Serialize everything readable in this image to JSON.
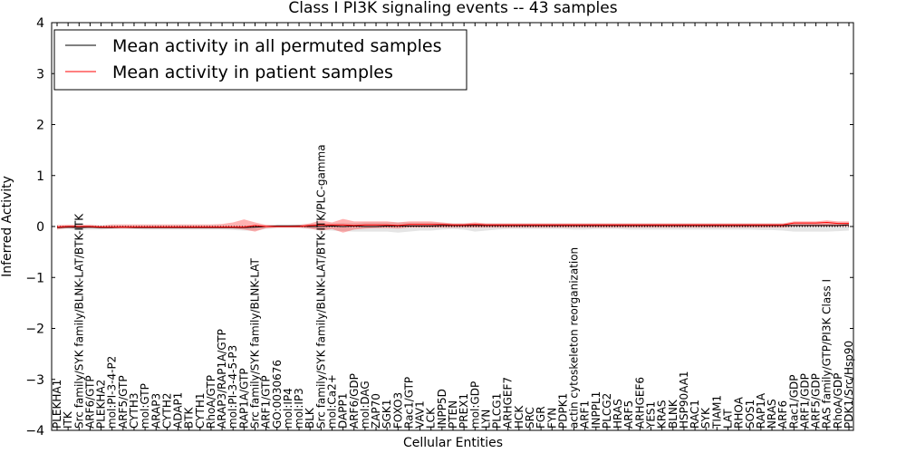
{
  "chart_data": {
    "type": "line",
    "title": "Class I PI3K signaling events -- 43 samples",
    "xlabel": "Cellular Entities",
    "ylabel": "Inferred Activity",
    "ylim": [
      -4,
      4
    ],
    "yticks": [
      -4,
      -3,
      -2,
      -1,
      0,
      1,
      2,
      3,
      4
    ],
    "grid": false,
    "legend_position": "top-left",
    "categories": [
      "PLEKHA1",
      "ITK",
      "Src family/SYK family/BLNK-LAT/BTK-ITK",
      "ARF6/GTP",
      "PLEKHA2",
      "mol:PI-3-4-P2",
      "ARF5/GTP",
      "CYTH3",
      "mol:GTP",
      "ARAP3",
      "CYTH2",
      "ADAP1",
      "BTK",
      "CYTH1",
      "RhoA/GTP",
      "ARAP3/RAP1A/GTP",
      "mol:PI-3-4-5-P3",
      "RAP1A/GTP",
      "Src family/SYK family/BLNK-LAT",
      "ARF1/GTP",
      "GO:0030676",
      "mol:IP4",
      "mol:IP3",
      "BLK",
      "Src family/SYK family/BLNK-LAT/BTK-ITK/PLC-gamma",
      "mol:Ca2+",
      "DAPP1",
      "ARF6/GDP",
      "mol:DAG",
      "ZAP70",
      "SGK1",
      "FOXO3",
      "Rac1/GTP",
      "VAV1",
      "LCK",
      "INPP5D",
      "PTEN",
      "PREX1",
      "mol:GDP",
      "LYN",
      "PLCG1",
      "ARHGEF7",
      "HCK",
      "SRC",
      "FGR",
      "FYN",
      "PDPK1",
      "actin cytoskeleton reorganization",
      "ARF1",
      "INPPL1",
      "PLCG2",
      "HRAS",
      "ARF5",
      "ARHGEF6",
      "YES1",
      "KRAS",
      "BLNK",
      "HSP90AA1",
      "RAC1",
      "SYK",
      "TIAM1",
      "LAT",
      "RHOA",
      "SOS1",
      "RAP1A",
      "NRAS",
      "ARF6",
      "Rac1/GDP",
      "ARF1/GDP",
      "ARF5/GDP",
      "RAS family/GTP/PI3K Class I",
      "RhoA/GDP",
      "PDK1/Src/Hsp90"
    ],
    "series": [
      {
        "name": "Mean activity in all permuted samples",
        "color": "#000000",
        "values": [
          -0.02,
          -0.01,
          -0.02,
          -0.01,
          -0.02,
          -0.02,
          -0.01,
          -0.02,
          -0.02,
          -0.02,
          -0.02,
          -0.02,
          -0.02,
          -0.02,
          -0.02,
          -0.02,
          -0.02,
          -0.02,
          -0.01,
          0.0,
          0.01,
          0.01,
          0.01,
          0.0,
          0.0,
          0.01,
          0.0,
          0.01,
          0.0,
          0.0,
          0.01,
          0.01,
          0.01,
          0.01,
          0.01,
          0.02,
          0.02,
          0.02,
          0.02,
          0.02,
          0.02,
          0.02,
          0.02,
          0.02,
          0.02,
          0.02,
          0.02,
          0.02,
          0.02,
          0.02,
          0.02,
          0.02,
          0.02,
          0.02,
          0.02,
          0.02,
          0.02,
          0.02,
          0.02,
          0.02,
          0.02,
          0.02,
          0.02,
          0.02,
          0.02,
          0.02,
          0.02,
          0.02,
          0.02,
          0.02,
          0.02,
          0.02,
          0.03
        ],
        "band_lower": [
          -0.04,
          -0.05,
          -0.07,
          -0.06,
          -0.06,
          -0.05,
          -0.05,
          -0.05,
          -0.06,
          -0.06,
          -0.06,
          -0.06,
          -0.06,
          -0.06,
          -0.06,
          -0.06,
          -0.07,
          -0.08,
          -0.08,
          -0.05,
          -0.03,
          -0.03,
          -0.03,
          -0.05,
          -0.07,
          -0.08,
          -0.09,
          -0.1,
          -0.1,
          -0.1,
          -0.1,
          -0.12,
          -0.1,
          -0.08,
          -0.08,
          -0.06,
          -0.05,
          -0.06,
          -0.1,
          -0.08,
          -0.06,
          -0.05,
          -0.05,
          -0.05,
          -0.05,
          -0.05,
          -0.05,
          -0.06,
          -0.06,
          -0.05,
          -0.05,
          -0.05,
          -0.06,
          -0.06,
          -0.06,
          -0.06,
          -0.06,
          -0.06,
          -0.06,
          -0.06,
          -0.06,
          -0.06,
          -0.06,
          -0.06,
          -0.07,
          -0.07,
          -0.08,
          -0.1,
          -0.1,
          -0.1,
          -0.1,
          -0.09,
          -0.08
        ],
        "band_upper": [
          0.0,
          0.03,
          0.03,
          0.03,
          0.02,
          0.02,
          0.02,
          0.02,
          0.02,
          0.02,
          0.02,
          0.02,
          0.02,
          0.02,
          0.02,
          0.02,
          0.02,
          0.02,
          0.02,
          0.03,
          0.04,
          0.04,
          0.04,
          0.05,
          0.06,
          0.06,
          0.07,
          0.07,
          0.08,
          0.08,
          0.08,
          0.08,
          0.08,
          0.08,
          0.08,
          0.07,
          0.06,
          0.06,
          0.06,
          0.06,
          0.06,
          0.06,
          0.06,
          0.06,
          0.06,
          0.06,
          0.06,
          0.06,
          0.06,
          0.06,
          0.06,
          0.06,
          0.06,
          0.06,
          0.06,
          0.06,
          0.06,
          0.06,
          0.06,
          0.06,
          0.06,
          0.06,
          0.06,
          0.06,
          0.06,
          0.06,
          0.06,
          0.06,
          0.06,
          0.06,
          0.06,
          0.06,
          0.07
        ]
      },
      {
        "name": "Mean activity in patient samples",
        "color": "#ff0000",
        "values": [
          -0.01,
          0.0,
          0.0,
          0.0,
          -0.01,
          -0.01,
          -0.01,
          -0.01,
          -0.01,
          -0.01,
          -0.01,
          -0.01,
          -0.01,
          -0.01,
          -0.01,
          -0.01,
          -0.01,
          -0.01,
          0.02,
          0.0,
          0.0,
          0.0,
          0.0,
          0.02,
          0.03,
          0.03,
          0.03,
          0.02,
          0.03,
          0.03,
          0.03,
          0.02,
          0.04,
          0.04,
          0.04,
          0.04,
          0.03,
          0.03,
          0.04,
          0.03,
          0.03,
          0.03,
          0.03,
          0.03,
          0.03,
          0.03,
          0.03,
          0.03,
          0.03,
          0.03,
          0.03,
          0.03,
          0.03,
          0.03,
          0.03,
          0.03,
          0.03,
          0.03,
          0.03,
          0.03,
          0.03,
          0.03,
          0.03,
          0.03,
          0.03,
          0.03,
          0.03,
          0.07,
          0.07,
          0.07,
          0.08,
          0.06,
          0.06
        ],
        "band_lower": [
          -0.06,
          -0.03,
          -0.03,
          -0.03,
          -0.04,
          -0.04,
          -0.04,
          -0.04,
          -0.04,
          -0.04,
          -0.04,
          -0.04,
          -0.04,
          -0.04,
          -0.04,
          -0.04,
          -0.04,
          -0.06,
          -0.1,
          -0.03,
          -0.02,
          -0.02,
          -0.02,
          -0.04,
          -0.08,
          -0.05,
          -0.12,
          -0.06,
          -0.04,
          -0.03,
          -0.03,
          -0.04,
          -0.02,
          -0.02,
          -0.02,
          -0.02,
          -0.02,
          -0.02,
          -0.02,
          -0.02,
          -0.02,
          -0.02,
          -0.02,
          -0.02,
          -0.02,
          -0.02,
          -0.02,
          -0.02,
          -0.02,
          -0.02,
          -0.02,
          -0.02,
          -0.02,
          -0.02,
          -0.02,
          -0.02,
          -0.02,
          -0.02,
          -0.02,
          -0.02,
          -0.02,
          -0.02,
          -0.02,
          -0.02,
          -0.02,
          -0.02,
          -0.02,
          0.0,
          0.0,
          0.0,
          0.0,
          0.0,
          0.0
        ],
        "band_upper": [
          0.03,
          0.03,
          0.03,
          0.03,
          0.02,
          0.04,
          0.04,
          0.04,
          0.04,
          0.04,
          0.04,
          0.04,
          0.04,
          0.04,
          0.04,
          0.05,
          0.08,
          0.14,
          0.08,
          0.03,
          0.02,
          0.02,
          0.03,
          0.06,
          0.12,
          0.08,
          0.15,
          0.1,
          0.1,
          0.1,
          0.1,
          0.08,
          0.1,
          0.1,
          0.1,
          0.08,
          0.06,
          0.06,
          0.08,
          0.06,
          0.06,
          0.06,
          0.06,
          0.06,
          0.06,
          0.06,
          0.06,
          0.06,
          0.06,
          0.06,
          0.06,
          0.06,
          0.06,
          0.06,
          0.06,
          0.06,
          0.06,
          0.06,
          0.06,
          0.06,
          0.06,
          0.06,
          0.06,
          0.06,
          0.06,
          0.06,
          0.06,
          0.1,
          0.1,
          0.1,
          0.12,
          0.1,
          0.1
        ]
      }
    ],
    "baseline": 0
  }
}
